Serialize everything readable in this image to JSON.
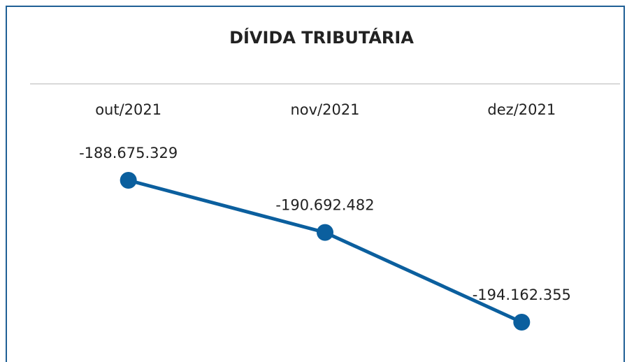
{
  "chart_data": {
    "type": "line",
    "title": "DÍVIDA TRIBUTÁRIA",
    "categories": [
      "out/2021",
      "nov/2021",
      "dez/2021"
    ],
    "series": [
      {
        "name": null,
        "color": "#0b5f9e",
        "values": [
          -188675329,
          -190692482,
          -194162355
        ],
        "value_labels": [
          "-188.675.329",
          "-190.692.482",
          "-194.162.355"
        ]
      }
    ]
  }
}
